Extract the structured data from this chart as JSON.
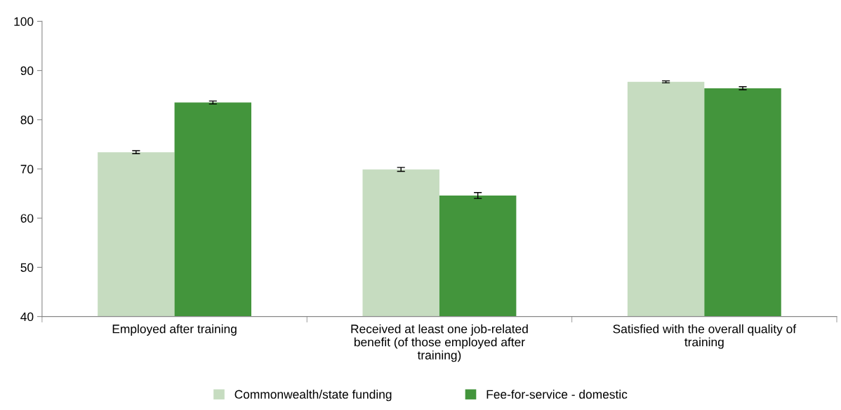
{
  "chart_data": {
    "type": "bar",
    "categories": [
      "Employed after training",
      "Received at least one job-related benefit (of those employed after training)",
      "Satisfied with the overall quality of training"
    ],
    "series": [
      {
        "name": "Commonwealth/state funding",
        "color": "#c6dcc0",
        "values": [
          73.4,
          69.9,
          87.7
        ],
        "errors": [
          0.3,
          0.4,
          0.2
        ]
      },
      {
        "name": "Fee-for-service - domestic",
        "color": "#43953c",
        "values": [
          83.5,
          64.6,
          86.4
        ],
        "errors": [
          0.3,
          0.6,
          0.3
        ]
      }
    ],
    "ylim": [
      40,
      100
    ],
    "yticks": [
      40,
      50,
      60,
      70,
      80,
      90,
      100
    ],
    "grid": false,
    "legend": "bottom"
  }
}
